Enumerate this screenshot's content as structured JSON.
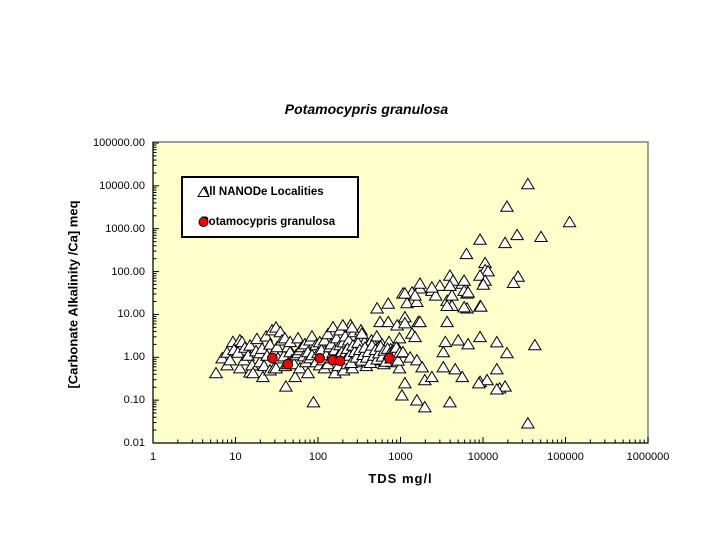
{
  "chart_data": {
    "type": "scatter",
    "title": "Potamocypris granulosa",
    "xlabel": "TDS  mg/l",
    "ylabel": "[Carbonate Alkalinity /Ca] meq",
    "x_scale": "log",
    "y_scale": "log",
    "xlim": [
      1,
      1000000
    ],
    "ylim": [
      0.01,
      100000
    ],
    "x_tick_labels": [
      "1",
      "10",
      "100",
      "1000",
      "10000",
      "100000",
      "1000000"
    ],
    "y_tick_labels": [
      "100000.00",
      "10000.00",
      "1000.00",
      "100.00",
      "10.00",
      "1.00",
      "0.10",
      "0.01"
    ],
    "grid": false,
    "plot_bg": "#FFFFCC",
    "plot_border_color": "#808080",
    "axis_color": "#000000",
    "legend_position": "upper-left-inside",
    "legend": {
      "items": [
        {
          "label": "All NANODe Localities",
          "marker": "triangle",
          "fill": "#FFFFFF",
          "stroke": "#000000"
        },
        {
          "label": "Potamocypris granulosa",
          "marker": "circle",
          "fill": "#FF0000",
          "stroke": "#000000"
        }
      ]
    },
    "series": [
      {
        "name": "All NANODe Localities",
        "marker": "triangle",
        "marker_fill": "#FFFFFF",
        "marker_stroke": "#000000",
        "points": [
          [
            5.8,
            0.43
          ],
          [
            6.9,
            0.96
          ],
          [
            7.9,
            1.3
          ],
          [
            7.9,
            0.66
          ],
          [
            8.6,
            0.86
          ],
          [
            9.3,
            2.3
          ],
          [
            9.6,
            1.5
          ],
          [
            10.7,
            1.3
          ],
          [
            11.3,
            2.5
          ],
          [
            11.3,
            0.56
          ],
          [
            12,
            2.3
          ],
          [
            12.7,
            0.86
          ],
          [
            13,
            1.7
          ],
          [
            14.2,
            1.1
          ],
          [
            15,
            1.9
          ],
          [
            15,
            0.45
          ],
          [
            15.9,
            0.66
          ],
          [
            16.3,
            0.43
          ],
          [
            17.7,
            1.4
          ],
          [
            18.2,
            2.7
          ],
          [
            19.8,
            0.78
          ],
          [
            19.8,
            1.26
          ],
          [
            21,
            1.6
          ],
          [
            21.5,
            0.35
          ],
          [
            22.2,
            0.63
          ],
          [
            23.5,
            3.1
          ],
          [
            24.1,
            1.1
          ],
          [
            26.2,
            2.0
          ],
          [
            26.2,
            0.5
          ],
          [
            27.7,
            4.3
          ],
          [
            29.4,
            1.33
          ],
          [
            29.4,
            0.56
          ],
          [
            31,
            5.0
          ],
          [
            31,
            0.56
          ],
          [
            32,
            1.74
          ],
          [
            32.7,
            0.96
          ],
          [
            35,
            3.9
          ],
          [
            36.6,
            2.5
          ],
          [
            38.6,
            1.07
          ],
          [
            39.7,
            2.8
          ],
          [
            40,
            0.63
          ],
          [
            40.8,
            0.21
          ],
          [
            43.2,
            1.74
          ],
          [
            43.2,
            0.7
          ],
          [
            45.9,
            1.33
          ],
          [
            45.9,
            2.3
          ],
          [
            48,
            0.86
          ],
          [
            51.4,
            0.7
          ],
          [
            52.8,
            0.35
          ],
          [
            54.3,
            1.13
          ],
          [
            57.3,
            2.8
          ],
          [
            57.3,
            1.26
          ],
          [
            60.3,
            1.48
          ],
          [
            60.3,
            0.56
          ],
          [
            63.9,
            1.74
          ],
          [
            67.4,
            1.07
          ],
          [
            69.3,
            2.04
          ],
          [
            71.3,
            0.78
          ],
          [
            75.6,
            1.33
          ],
          [
            75.6,
            0.43
          ],
          [
            80,
            2.5
          ],
          [
            80,
            0.96
          ],
          [
            84.5,
            1.13
          ],
          [
            84.5,
            3.1
          ],
          [
            88,
            0.09
          ],
          [
            94.8,
            0.78
          ],
          [
            94.8,
            1.94
          ],
          [
            100,
            1.26
          ],
          [
            105,
            0.66
          ],
          [
            105,
            2.27
          ],
          [
            110,
            1.48
          ],
          [
            115,
            0.86
          ],
          [
            120,
            2.5
          ],
          [
            120,
            0.56
          ],
          [
            126,
            1.13
          ],
          [
            132,
            3.5
          ],
          [
            132,
            0.7
          ],
          [
            139,
            1.74
          ],
          [
            145,
            0.96
          ],
          [
            145,
            2.04
          ],
          [
            152,
            5.1
          ],
          [
            152,
            1.26
          ],
          [
            160,
            0.43
          ],
          [
            160,
            1.48
          ],
          [
            168,
            2.8
          ],
          [
            176,
            1.07
          ],
          [
            176,
            0.63
          ],
          [
            185,
            1.94
          ],
          [
            185,
            4.3
          ],
          [
            194,
            0.86
          ],
          [
            194,
            1.33
          ],
          [
            204,
            2.27
          ],
          [
            204,
            0.5
          ],
          [
            214,
            1.13
          ],
          [
            214,
            3.1
          ],
          [
            225,
            1.56
          ],
          [
            225,
            0.7
          ],
          [
            236,
            2.5
          ],
          [
            236,
            0.96
          ],
          [
            248,
            1.26
          ],
          [
            248,
            5.7
          ],
          [
            260,
            1.74
          ],
          [
            260,
            0.56
          ],
          [
            273,
            3.9
          ],
          [
            273,
            1.07
          ],
          [
            287,
            2.04
          ],
          [
            287,
            0.78
          ],
          [
            301,
            1.48
          ],
          [
            316,
            2.8
          ],
          [
            316,
            0.86
          ],
          [
            332,
            1.13
          ],
          [
            332,
            4.3
          ],
          [
            349,
            1.74
          ],
          [
            366,
            0.96
          ],
          [
            366,
            2.27
          ],
          [
            385,
            1.33
          ],
          [
            385,
            0.63
          ],
          [
            404,
            1.94
          ],
          [
            424,
            1.07
          ],
          [
            445,
            2.5
          ],
          [
            468,
            1.48
          ],
          [
            491,
            0.86
          ],
          [
            516,
            3.1
          ],
          [
            542,
            1.74
          ],
          [
            569,
            1.13
          ],
          [
            597,
            2.04
          ],
          [
            627,
            0.7
          ],
          [
            658,
            1.33
          ],
          [
            691,
            0.96
          ],
          [
            726,
            2.3
          ],
          [
            762,
            1.56
          ],
          [
            800,
            0.78
          ],
          [
            840,
            1.13
          ],
          [
            882,
            1.94
          ],
          [
            926,
            1.33
          ],
          [
            972,
            0.56
          ],
          [
            972,
            2.8
          ],
          [
            210,
            1.2
          ],
          [
            218,
            0.9
          ],
          [
            228,
            1.6
          ],
          [
            240,
            1.1
          ],
          [
            252,
            0.75
          ],
          [
            265,
            1.9
          ],
          [
            278,
            1.35
          ],
          [
            292,
            1.0
          ],
          [
            306,
            2.2
          ],
          [
            321,
            1.5
          ],
          [
            337,
            0.85
          ],
          [
            354,
            1.15
          ],
          [
            371,
            1.7
          ],
          [
            390,
            1.0
          ],
          [
            410,
            1.35
          ],
          [
            430,
            0.75
          ],
          [
            452,
            1.9
          ],
          [
            474,
            1.1
          ],
          [
            498,
            1.5
          ],
          [
            522,
            0.9
          ],
          [
            548,
            1.25
          ],
          [
            575,
            1.8
          ],
          [
            604,
            1.05
          ],
          [
            634,
            1.45
          ],
          [
            665,
            0.8
          ],
          [
            698,
            1.6
          ],
          [
            733,
            1.2
          ],
          [
            769,
            0.95
          ],
          [
            807,
            1.4
          ],
          [
            848,
            1.1
          ],
          [
            890,
            1.7
          ],
          [
            934,
            0.85
          ],
          [
            980,
            1.3
          ],
          [
            200,
            5.6
          ],
          [
            258,
            5.0
          ],
          [
            340,
            3.6
          ],
          [
            520,
            14
          ],
          [
            710,
            18
          ],
          [
            565,
            6.7
          ],
          [
            710,
            6.7
          ],
          [
            910,
            5.6
          ],
          [
            1070,
            31
          ],
          [
            1380,
            33
          ],
          [
            1720,
            41
          ],
          [
            2400,
            36
          ],
          [
            3000,
            47
          ],
          [
            3970,
            81
          ],
          [
            4330,
            62
          ],
          [
            3670,
            21
          ],
          [
            4200,
            16
          ],
          [
            1200,
            18.5
          ],
          [
            1580,
            19.8
          ],
          [
            1130,
            8.7
          ],
          [
            1640,
            6.7
          ],
          [
            3670,
            6.7
          ],
          [
            1500,
            28
          ],
          [
            1130,
            31
          ],
          [
            2670,
            28
          ],
          [
            3500,
            2.3
          ],
          [
            5000,
            2.5
          ],
          [
            6600,
            2.04
          ],
          [
            9200,
            3.0
          ],
          [
            14700,
            2.27
          ],
          [
            19500,
            1.26
          ],
          [
            42500,
            1.94
          ],
          [
            3300,
            1.33
          ],
          [
            4200,
            28
          ],
          [
            5600,
            53
          ],
          [
            6300,
            260
          ],
          [
            9200,
            560
          ],
          [
            10600,
            160
          ],
          [
            10600,
            109
          ],
          [
            11500,
            103
          ],
          [
            9200,
            81
          ],
          [
            10600,
            62
          ],
          [
            26600,
            77
          ],
          [
            18500,
            470
          ],
          [
            19500,
            3300
          ],
          [
            25900,
            720
          ],
          [
            35000,
            11100
          ],
          [
            50500,
            650
          ],
          [
            112000,
            1440
          ],
          [
            1720,
            53
          ],
          [
            2400,
            43
          ],
          [
            3970,
            47
          ],
          [
            6400,
            31
          ],
          [
            10100,
            50
          ],
          [
            23400,
            55
          ],
          [
            3670,
            16
          ],
          [
            6400,
            14
          ],
          [
            9200,
            15.5
          ],
          [
            1130,
            6.3
          ],
          [
            1720,
            6.7
          ],
          [
            1380,
            3.6
          ],
          [
            1500,
            3.0
          ],
          [
            5900,
            36
          ],
          [
            5900,
            14.8
          ],
          [
            9400,
            15.5
          ],
          [
            5900,
            62
          ],
          [
            6600,
            33
          ],
          [
            1070,
            1.33
          ],
          [
            1310,
            1.0
          ],
          [
            1580,
            0.86
          ],
          [
            1830,
            0.59
          ],
          [
            3300,
            0.59
          ],
          [
            4600,
            0.53
          ],
          [
            5600,
            0.35
          ],
          [
            9200,
            0.27
          ],
          [
            11200,
            0.295
          ],
          [
            14700,
            0.53
          ],
          [
            15900,
            0.19
          ],
          [
            18500,
            0.21
          ],
          [
            1970,
            0.295
          ],
          [
            2400,
            0.35
          ],
          [
            1130,
            0.25
          ],
          [
            1040,
            0.13
          ],
          [
            1580,
            0.1
          ],
          [
            1970,
            0.069
          ],
          [
            3970,
            0.09
          ],
          [
            35000,
            0.029
          ],
          [
            8900,
            0.25
          ],
          [
            14700,
            0.18
          ]
        ]
      },
      {
        "name": "Potamocypris granulosa",
        "marker": "circle",
        "marker_fill": "#FF0000",
        "marker_stroke": "#000000",
        "points": [
          [
            28,
            0.96
          ],
          [
            43,
            0.69
          ],
          [
            105,
            0.95
          ],
          [
            150,
            0.86
          ],
          [
            185,
            0.83
          ],
          [
            730,
            0.96
          ]
        ]
      }
    ]
  }
}
